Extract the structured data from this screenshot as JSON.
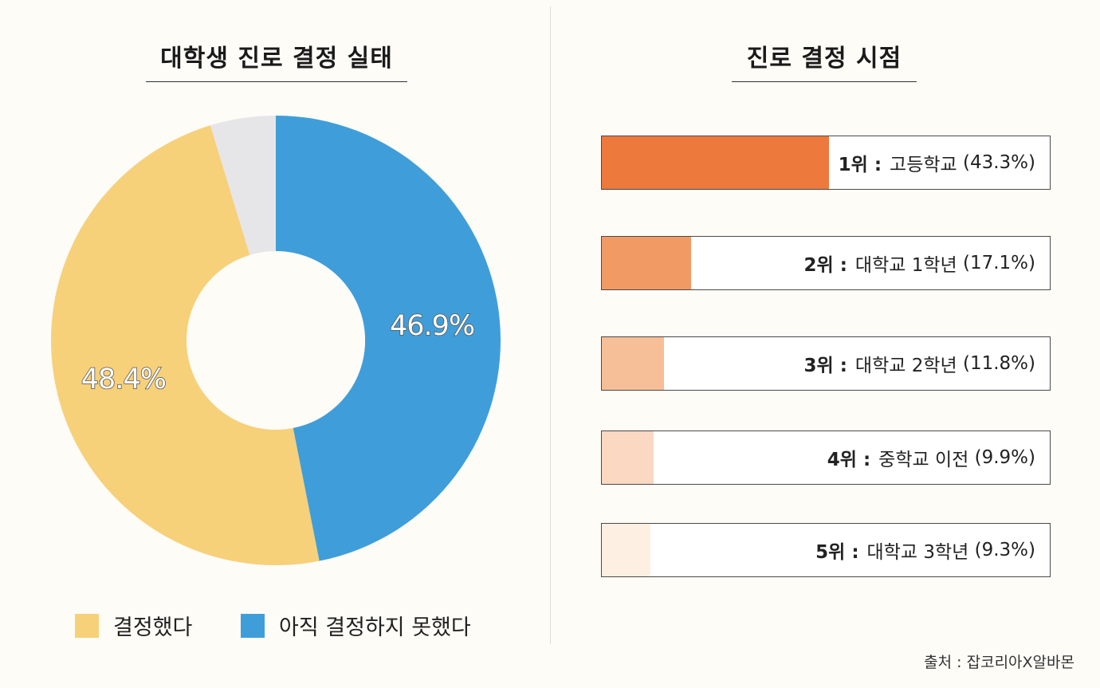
{
  "chart_data": [
    {
      "type": "pie",
      "title": "대학생 진로 결정 실태",
      "labels": [
        "결정했다",
        "아직 결정하지 못했다",
        ""
      ],
      "values": [
        48.4,
        46.9,
        4.7
      ],
      "value_labels": [
        "48.4%",
        "46.9%",
        ""
      ],
      "colors": [
        "#f7d07a",
        "#3f9ed9",
        "#e6e6e8"
      ],
      "legend": [
        {
          "label": "결정했다",
          "color": "#f7d07a"
        },
        {
          "label": "아직 결정하지 못했다",
          "color": "#3f9ed9"
        }
      ],
      "legend_position": "bottom"
    },
    {
      "type": "bar",
      "title": "진로 결정 시점",
      "orientation": "horizontal",
      "xlim": [
        0,
        100
      ],
      "categories": [
        "1위",
        "2위",
        "3위",
        "4위",
        "5위"
      ],
      "names": [
        "고등학교",
        "대학교 1학년",
        "대학교 2학년",
        "중학교 이전",
        "대학교 3학년"
      ],
      "values": [
        43.3,
        17.1,
        11.8,
        9.9,
        9.3
      ],
      "value_labels": [
        "(43.3%)",
        "(17.1%)",
        "(11.8%)",
        "(9.9%)",
        "(9.3%)"
      ],
      "colors": [
        "#ee793d",
        "#f29a64",
        "#f6bf97",
        "#fbd8c1",
        "#fdf0e3"
      ]
    }
  ],
  "source": "출처 : 잡코리아X알바몬"
}
